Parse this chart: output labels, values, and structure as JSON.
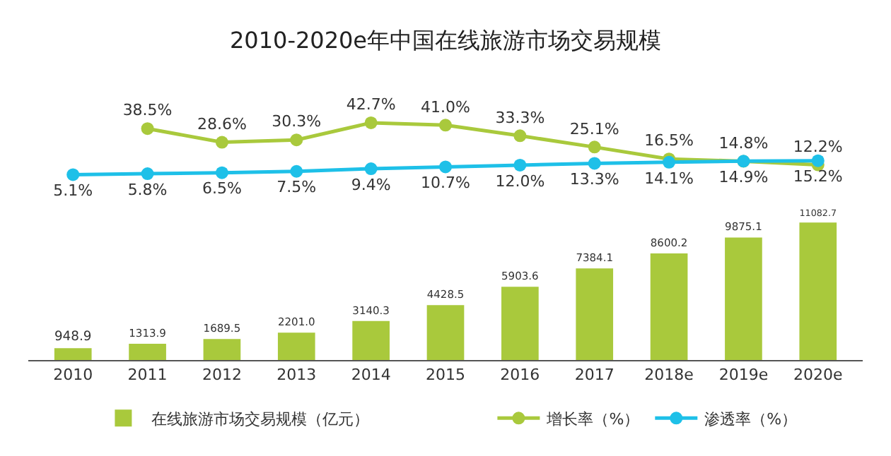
{
  "chart_data": [
    {
      "type": "line",
      "title": "2010-2020e年中国在线旅游市场交易规模",
      "categories": [
        null,
        null,
        null,
        null,
        null,
        null,
        null,
        null,
        null,
        null,
        null
      ],
      "series": [
        {
          "name": "增长率（%）",
          "color": "#a9c93c",
          "values": [
            null,
            38.5,
            28.6,
            30.3,
            42.7,
            41.0,
            33.3,
            25.1,
            16.5,
            14.8,
            12.2
          ],
          "value_labels": [
            null,
            "38.5%",
            "28.6%",
            "30.3%",
            "42.7%",
            "41.0%",
            "33.3%",
            "25.1%",
            "16.5%",
            "14.8%",
            "12.2%"
          ]
        },
        {
          "name": "渗透率（%）",
          "color": "#1ec0e8",
          "values": [
            5.1,
            5.8,
            6.5,
            7.5,
            9.4,
            10.7,
            12.0,
            13.3,
            14.1,
            14.9,
            15.2
          ],
          "value_labels": [
            "5.1%",
            "5.8%",
            "6.5%",
            "7.5%",
            "9.4%",
            "10.7%",
            "12.0%",
            "13.3%",
            "14.1%",
            "14.9%",
            "15.2%"
          ]
        }
      ],
      "grid": false,
      "legend": "bottom",
      "tick_labels": false,
      "marker": "circle",
      "line_style": "solid"
    },
    {
      "type": "bar",
      "categories": [
        "2010",
        "2011",
        "2012",
        "2013",
        "2014",
        "2015",
        "2016",
        "2017",
        "2018e",
        "2019e",
        "2020e"
      ],
      "series": [
        {
          "name": "在线旅游市场交易规模（亿元）",
          "color": "#a9c93c",
          "values": [
            948.9,
            1313.9,
            1689.5,
            2201.0,
            3140.3,
            4428.5,
            5903.6,
            7384.1,
            8600.2,
            9875.1,
            11082.7
          ],
          "value_labels": [
            "948.9",
            "1313.9",
            "1689.5",
            "2201.0",
            "3140.3",
            "4428.5",
            "5903.6",
            "7384.1",
            "8600.2",
            "9875.1",
            "11082.7"
          ]
        }
      ],
      "grid": false,
      "legend": "bottom",
      "tick_labels": "x"
    }
  ]
}
